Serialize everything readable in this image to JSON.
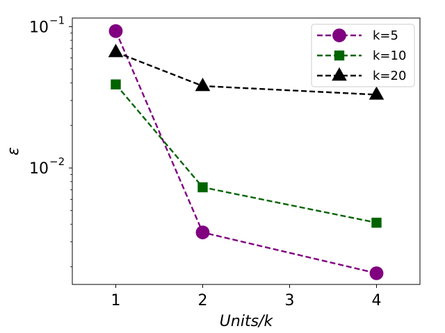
{
  "chart_data": {
    "type": "line",
    "title": "",
    "xlabel": "Units/k",
    "ylabel": "ε",
    "x_scale": "categorical",
    "y_scale": "log",
    "x": [
      1,
      2,
      4
    ],
    "x_tick_labels": [
      "1",
      "2",
      "3",
      "4"
    ],
    "xlim": [
      0.5,
      4.5
    ],
    "ylim": [
      0.0015,
      0.115
    ],
    "y_ticks": [
      {
        "base": "10",
        "exp": "−1",
        "value": 0.1
      },
      {
        "base": "10",
        "exp": "−2",
        "value": 0.01
      }
    ],
    "grid": false,
    "legend_position": "top-right",
    "series": [
      {
        "name": "k=5",
        "values": [
          0.093,
          0.0035,
          0.0018
        ],
        "color": "#800080",
        "marker": "circle",
        "linestyle": "dashed"
      },
      {
        "name": "k=10",
        "values": [
          0.039,
          0.0073,
          0.0041
        ],
        "color": "#006400",
        "marker": "square",
        "linestyle": "dashed"
      },
      {
        "name": "k=20",
        "values": [
          0.066,
          0.038,
          0.033
        ],
        "color": "#000000",
        "marker": "triangle",
        "linestyle": "dashed"
      }
    ]
  }
}
